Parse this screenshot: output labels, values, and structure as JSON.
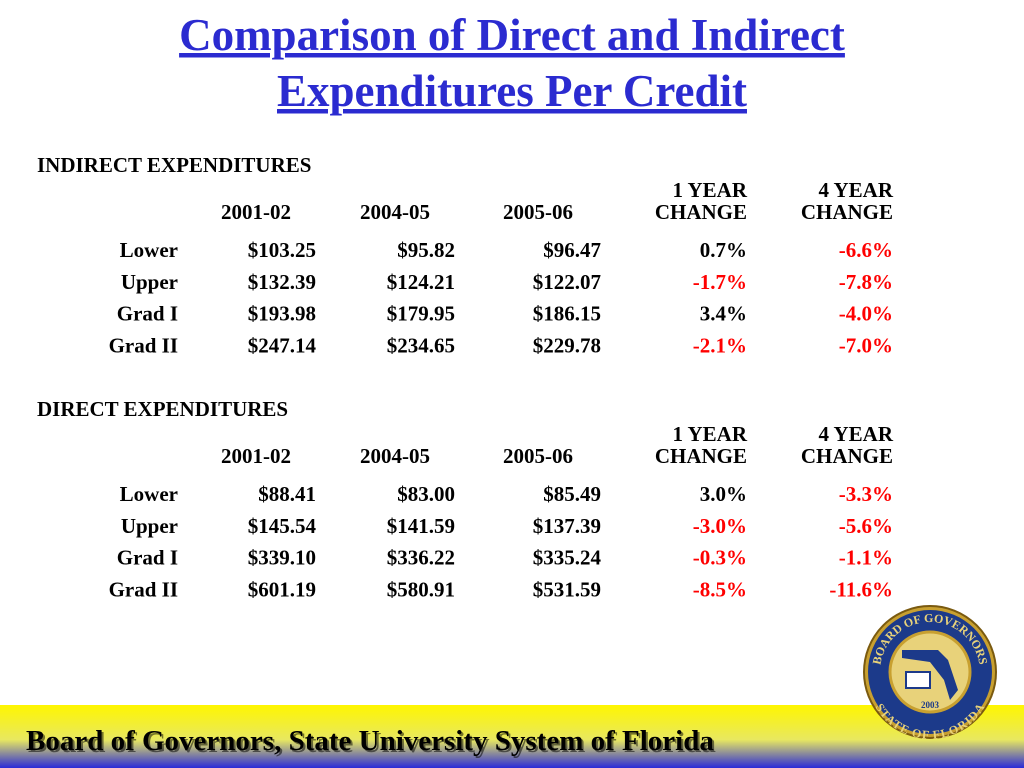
{
  "title": "Comparison of Direct and Indirect Expenditures Per Credit",
  "sections": [
    {
      "heading": "INDIRECT EXPENDITURES",
      "columns": [
        [
          "2001-02"
        ],
        [
          "2004-05"
        ],
        [
          "2005-06"
        ],
        [
          "1 YEAR",
          "CHANGE"
        ],
        [
          "4 YEAR",
          "CHANGE"
        ]
      ],
      "rows": [
        {
          "label": "Lower",
          "cells": [
            "$103.25",
            "$95.82",
            "$96.47",
            "0.7%",
            "-6.6%"
          ]
        },
        {
          "label": "Upper",
          "cells": [
            "$132.39",
            "$124.21",
            "$122.07",
            "-1.7%",
            "-7.8%"
          ]
        },
        {
          "label": "Grad I",
          "cells": [
            "$193.98",
            "$179.95",
            "$186.15",
            "3.4%",
            "-4.0%"
          ]
        },
        {
          "label": "Grad II",
          "cells": [
            "$247.14",
            "$234.65",
            "$229.78",
            "-2.1%",
            "-7.0%"
          ]
        }
      ]
    },
    {
      "heading": "DIRECT EXPENDITURES",
      "columns": [
        [
          "2001-02"
        ],
        [
          "2004-05"
        ],
        [
          "2005-06"
        ],
        [
          "1 YEAR",
          "CHANGE"
        ],
        [
          "4 YEAR",
          "CHANGE"
        ]
      ],
      "rows": [
        {
          "label": "Lower",
          "cells": [
            "$88.41",
            "$83.00",
            "$85.49",
            "3.0%",
            "-3.3%"
          ]
        },
        {
          "label": "Upper",
          "cells": [
            "$145.54",
            "$141.59",
            "$137.39",
            "-3.0%",
            "-5.6%"
          ]
        },
        {
          "label": "Grad I",
          "cells": [
            "$339.10",
            "$336.22",
            "$335.24",
            "-0.3%",
            "-1.1%"
          ]
        },
        {
          "label": "Grad II",
          "cells": [
            "$601.19",
            "$580.91",
            "$531.59",
            "-8.5%",
            "-11.6%"
          ]
        }
      ]
    }
  ],
  "seal": {
    "top": "BOARD OF GOVERNORS",
    "bottom": "STATE OF FLORIDA",
    "year": "2003"
  },
  "footer": "Board of Governors, State University System of Florida"
}
